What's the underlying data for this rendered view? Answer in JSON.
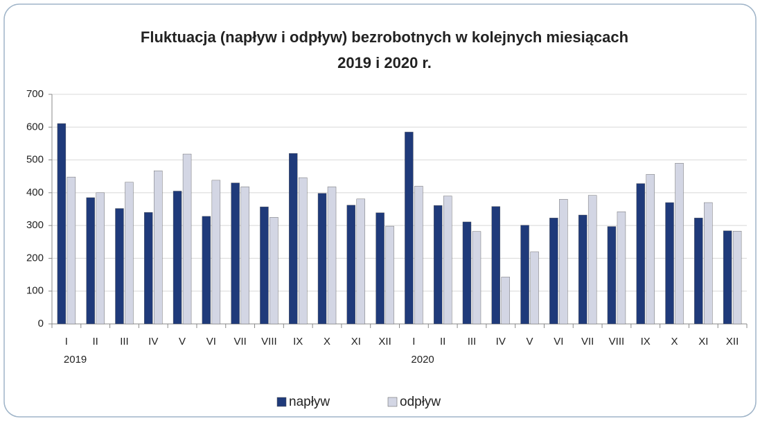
{
  "chart_data": {
    "type": "bar",
    "title": [
      "Fluktuacja (napływ i odpływ) bezrobotnych w kolejnych miesiącach",
      "2019 i 2020 r."
    ],
    "categories": [
      "I",
      "II",
      "III",
      "IV",
      "V",
      "VI",
      "VII",
      "VIII",
      "IX",
      "X",
      "XI",
      "XII",
      "I",
      "II",
      "III",
      "IV",
      "V",
      "VI",
      "VII",
      "VIII",
      "IX",
      "X",
      "XI",
      "XII"
    ],
    "x_group_labels": [
      "2019",
      null,
      null,
      null,
      null,
      null,
      null,
      null,
      null,
      null,
      null,
      null,
      "2020",
      null,
      null,
      null,
      null,
      null,
      null,
      null,
      null,
      null,
      null,
      null
    ],
    "series": [
      {
        "name": "napływ",
        "color": "#1f3a7a",
        "values": [
          611,
          385,
          352,
          340,
          405,
          328,
          430,
          357,
          520,
          398,
          362,
          339,
          585,
          361,
          311,
          358,
          301,
          323,
          332,
          297,
          428,
          370,
          323,
          284
        ]
      },
      {
        "name": "odpływ",
        "color": "#d3d6e4",
        "values": [
          448,
          400,
          432,
          467,
          518,
          438,
          418,
          325,
          446,
          418,
          381,
          298,
          420,
          390,
          282,
          143,
          220,
          380,
          392,
          342,
          456,
          490,
          370,
          283
        ]
      }
    ],
    "ylim": [
      0,
      700
    ],
    "yticks": [
      0,
      100,
      200,
      300,
      400,
      500,
      600,
      700
    ],
    "grid": true,
    "legend": "bottom"
  }
}
